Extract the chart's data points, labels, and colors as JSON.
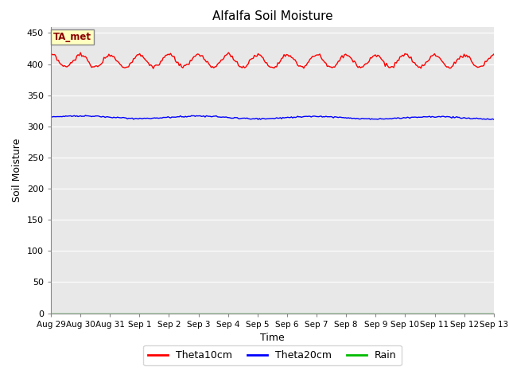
{
  "title": "Alfalfa Soil Moisture",
  "xlabel": "Time",
  "ylabel": "Soil Moisture",
  "ylim": [
    0,
    460
  ],
  "yticks": [
    0,
    50,
    100,
    150,
    200,
    250,
    300,
    350,
    400,
    450
  ],
  "x_labels": [
    "Aug 29",
    "Aug 30",
    "Aug 31",
    "Sep 1",
    "Sep 2",
    "Sep 3",
    "Sep 4",
    "Sep 5",
    "Sep 6",
    "Sep 7",
    "Sep 8",
    "Sep 9",
    "Sep 10",
    "Sep 11",
    "Sep 12",
    "Sep 13"
  ],
  "annotation_text": "TA_met",
  "annotation_color": "#8B0000",
  "annotation_bg": "#FFFFC0",
  "bg_color": "#E8E8E8",
  "grid_color": "white",
  "theta10_color": "red",
  "theta20_color": "blue",
  "rain_color": "#00BB00",
  "legend_labels": [
    "Theta10cm",
    "Theta20cm",
    "Rain"
  ],
  "theta10_base": 405,
  "theta10_amp": 10,
  "theta20_base": 315,
  "theta20_amp": 2,
  "n_days": 15,
  "seed": 0
}
